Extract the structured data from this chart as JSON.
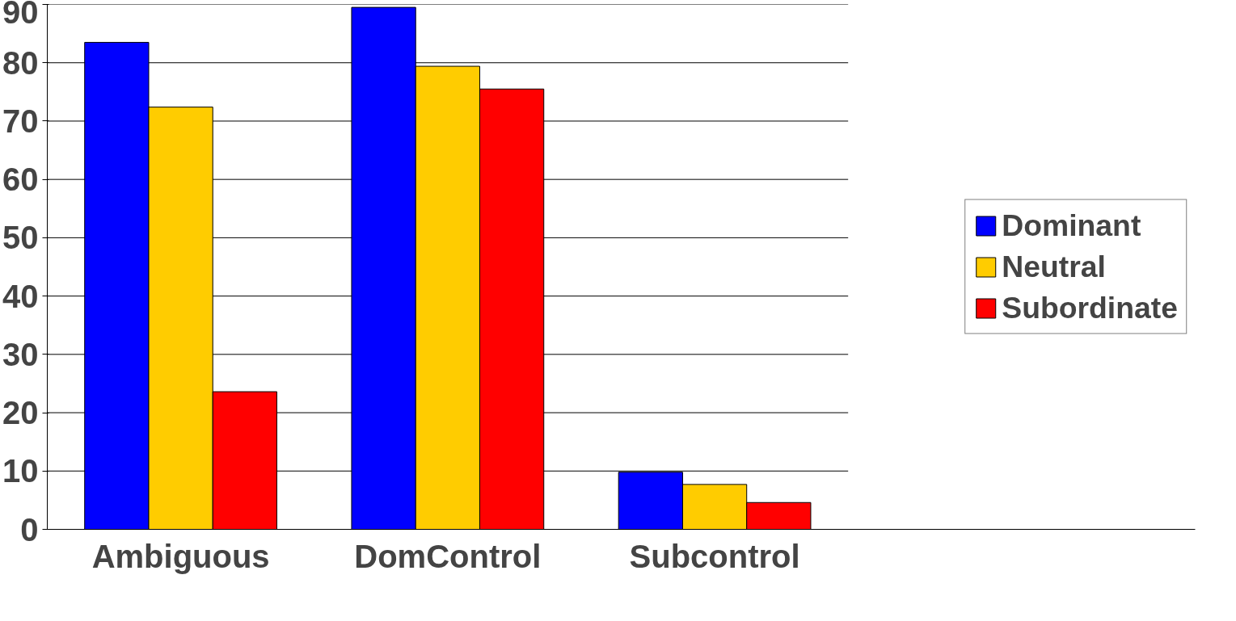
{
  "chart_data": {
    "type": "bar",
    "categories": [
      "Ambiguous",
      "DomControl",
      "Subcontrol"
    ],
    "series": [
      {
        "name": "Dominant",
        "color": "#0000ff",
        "values": [
          83.5,
          89.5,
          9.8
        ]
      },
      {
        "name": "Neutral",
        "color": "#ffcc00",
        "values": [
          72.4,
          79.4,
          7.7
        ]
      },
      {
        "name": "Subordinate",
        "color": "#ff0000",
        "values": [
          23.6,
          75.5,
          4.6
        ]
      }
    ],
    "ylim": [
      0,
      90
    ],
    "yticks": [
      0,
      10,
      20,
      30,
      40,
      50,
      60,
      70,
      80,
      90
    ],
    "grid": "y",
    "legend": "right"
  }
}
